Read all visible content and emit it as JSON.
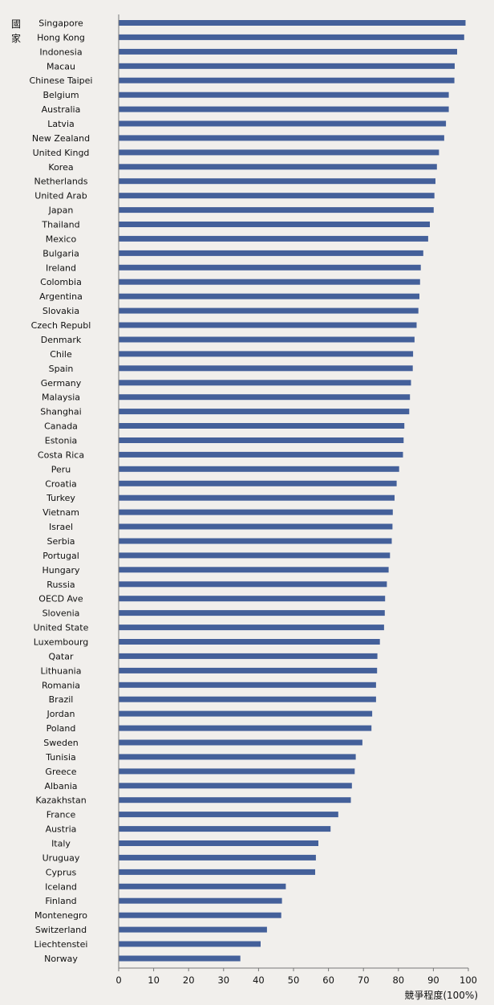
{
  "chart_data": {
    "type": "bar",
    "orientation": "horizontal",
    "title": "",
    "ylabel": "國家",
    "xlabel": "競爭程度(100%)",
    "xlim": [
      0,
      100
    ],
    "xticks": [
      0,
      10,
      20,
      30,
      40,
      50,
      60,
      70,
      80,
      90,
      100
    ],
    "grid": false,
    "legend": "none",
    "bar_color": "#44609a",
    "categories": [
      "Singapore",
      "Hong Kong",
      "Indonesia",
      "Macau",
      "Chinese Taipei",
      "Belgium",
      "Australia",
      "Latvia",
      "New Zealand",
      "United Kingd",
      "Korea",
      "Netherlands",
      "United Arab",
      "Japan",
      "Thailand",
      "Mexico",
      "Bulgaria",
      "Ireland",
      "Colombia",
      "Argentina",
      "Slovakia",
      "Czech Republ",
      "Denmark",
      "Chile",
      "Spain",
      "Germany",
      "Malaysia",
      "Shanghai",
      "Canada",
      "Estonia",
      "Costa Rica",
      "Peru",
      "Croatia",
      "Turkey",
      "Vietnam",
      "Israel",
      "Serbia",
      "Portugal",
      "Hungary",
      "Russia",
      "OECD Ave",
      "Slovenia",
      "United State",
      "Luxembourg",
      "Qatar",
      "Lithuania",
      "Romania",
      "Brazil",
      "Jordan",
      "Poland",
      "Sweden",
      "Tunisia",
      "Greece",
      "Albania",
      "Kazakhstan",
      "France",
      "Austria",
      "Italy",
      "Uruguay",
      "Cyprus",
      "Iceland",
      "Finland",
      "Montenegro",
      "Switzerland",
      "Liechtenstei",
      "Norway"
    ],
    "values": [
      99.2,
      98.8,
      96.8,
      96.1,
      96.0,
      94.4,
      94.4,
      93.6,
      93.1,
      91.6,
      91.0,
      90.6,
      90.3,
      90.1,
      89.0,
      88.5,
      87.1,
      86.4,
      86.2,
      86.0,
      85.7,
      85.2,
      84.6,
      84.2,
      84.1,
      83.6,
      83.3,
      83.1,
      81.7,
      81.5,
      81.3,
      80.2,
      79.5,
      78.9,
      78.4,
      78.3,
      78.1,
      77.6,
      77.2,
      76.7,
      76.2,
      76.1,
      75.9,
      74.7,
      74.0,
      73.9,
      73.6,
      73.6,
      72.5,
      72.3,
      69.7,
      67.8,
      67.5,
      66.7,
      66.4,
      62.8,
      60.6,
      57.1,
      56.4,
      56.2,
      47.8,
      46.7,
      46.5,
      42.4,
      40.6,
      34.8
    ]
  }
}
